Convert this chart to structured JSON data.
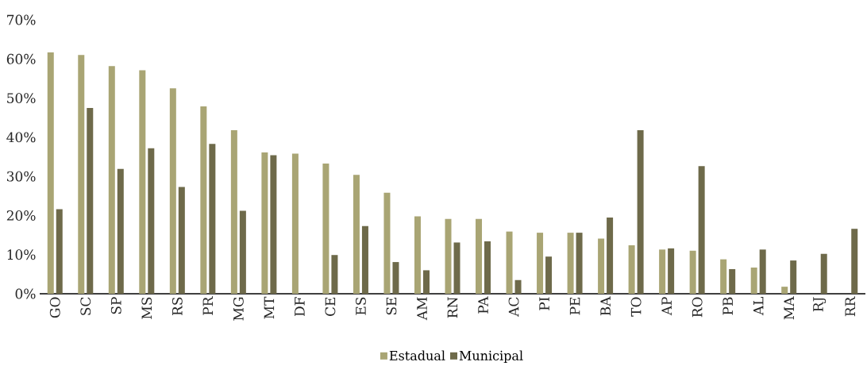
{
  "chart_data": {
    "type": "bar",
    "categories": [
      "GO",
      "SC",
      "SP",
      "MS",
      "RS",
      "PR",
      "MG",
      "MT",
      "DF",
      "CE",
      "ES",
      "SE",
      "AM",
      "RN",
      "PA",
      "AC",
      "PI",
      "PE",
      "BA",
      "TO",
      "AP",
      "RO",
      "PB",
      "AL",
      "MA",
      "RJ",
      "RR"
    ],
    "series": [
      {
        "name": "Estadual",
        "color": "#a9a574",
        "values": [
          61.7,
          61.0,
          58.2,
          57.1,
          52.5,
          47.9,
          41.8,
          36.1,
          35.8,
          33.3,
          30.4,
          25.8,
          19.8,
          19.1,
          19.1,
          15.9,
          15.6,
          15.6,
          14.1,
          12.4,
          11.3,
          11.0,
          8.8,
          6.7,
          1.8,
          null,
          null
        ]
      },
      {
        "name": "Municipal",
        "color": "#6e6a4a",
        "values": [
          21.6,
          47.5,
          31.9,
          37.2,
          27.3,
          38.3,
          21.2,
          35.4,
          null,
          9.9,
          17.3,
          8.1,
          6.0,
          13.1,
          13.4,
          3.5,
          9.5,
          15.6,
          19.5,
          41.8,
          11.6,
          32.6,
          6.3,
          11.3,
          8.5,
          10.2,
          16.6
        ]
      }
    ],
    "ylim": [
      0,
      70
    ],
    "yticks": [
      {
        "value": 0,
        "label": "0%"
      },
      {
        "value": 10,
        "label": "10%"
      },
      {
        "value": 20,
        "label": "20%"
      },
      {
        "value": 30,
        "label": "30%"
      },
      {
        "value": 40,
        "label": "40%"
      },
      {
        "value": 50,
        "label": "50%"
      },
      {
        "value": 60,
        "label": "60%"
      },
      {
        "value": 70,
        "label": "70%"
      }
    ],
    "legend": "bottom"
  }
}
